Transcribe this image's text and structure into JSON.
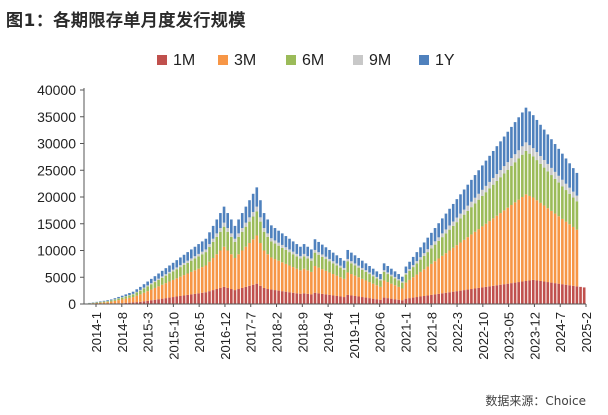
{
  "figure": {
    "title": "图1：各期限存单月度发行规模",
    "source": "数据来源：Choice"
  },
  "chart_data": {
    "type": "bar",
    "stacked": true,
    "ylim": [
      0,
      40000
    ],
    "yticks": [
      0,
      5000,
      10000,
      15000,
      20000,
      25000,
      30000,
      35000,
      40000
    ],
    "ytick_labels": [
      "0",
      "5000",
      "10000",
      "15000",
      "20000",
      "25000",
      "30000",
      "35000",
      "40000"
    ],
    "xtick_labels": [
      "2014-1",
      "2014-8",
      "2015-3",
      "2015-10",
      "2016-5",
      "2016-12",
      "2017-7",
      "2018-2",
      "2018-9",
      "2019-4",
      "2019-11",
      "2020-6",
      "2021-1",
      "2021-8",
      "2022-3",
      "2022-10",
      "2023-05",
      "2023-12",
      "2024-7",
      "2025-2"
    ],
    "legend_position": "top",
    "grid": false,
    "categories_start": "2014-1",
    "categories_end": "2025-2",
    "series_colors": [
      "#c0504d",
      "#f79646",
      "#9bbb59",
      "#c8c8c8",
      "#4f81bd"
    ],
    "series": [
      {
        "name": "1M",
        "values": [
          0,
          0,
          0,
          0,
          0,
          0,
          0,
          50,
          80,
          120,
          150,
          200,
          250,
          300,
          350,
          400,
          500,
          600,
          700,
          800,
          900,
          1000,
          1100,
          1200,
          1300,
          1400,
          1500,
          1600,
          1700,
          1800,
          1900,
          2000,
          2100,
          2200,
          2400,
          2600,
          2800,
          3000,
          3200,
          3000,
          2800,
          2600,
          2800,
          3000,
          3200,
          3400,
          3600,
          3800,
          3400,
          3000,
          2800,
          2700,
          2600,
          2500,
          2400,
          2300,
          2200,
          2100,
          2000,
          1900,
          2000,
          1900,
          1800,
          2100,
          2000,
          1900,
          1800,
          1700,
          1600,
          1500,
          1400,
          1300,
          1700,
          1600,
          1500,
          1400,
          1300,
          1200,
          1100,
          1000,
          900,
          800,
          1200,
          1100,
          1000,
          900,
          800,
          700,
          1000,
          1100,
          1200,
          1300,
          1400,
          1500,
          1600,
          1700,
          1800,
          1900,
          2000,
          2100,
          2200,
          2300,
          2400,
          2500,
          2600,
          2700,
          2800,
          2900,
          3000,
          3100,
          3200,
          3300,
          3400,
          3500,
          3600,
          3700,
          3800,
          3900,
          4000,
          4100,
          4200,
          4300,
          4400,
          4500,
          4400,
          4300,
          4200,
          4100,
          4000,
          3900,
          3800,
          3700,
          3600,
          3500,
          3400,
          3300,
          3200,
          3100
        ]
      },
      {
        "name": "3M",
        "values": [
          0,
          100,
          150,
          200,
          250,
          300,
          350,
          400,
          500,
          600,
          700,
          800,
          900,
          1000,
          1200,
          1400,
          1600,
          1800,
          2000,
          2200,
          2400,
          2600,
          2800,
          3000,
          3200,
          3400,
          3600,
          3800,
          4000,
          4200,
          4400,
          4600,
          4800,
          5000,
          5500,
          6000,
          6500,
          7000,
          7500,
          7000,
          6500,
          6000,
          6500,
          7000,
          7500,
          8000,
          8500,
          9000,
          8000,
          7000,
          6500,
          6000,
          5800,
          5600,
          5400,
          5200,
          5000,
          4800,
          4600,
          4400,
          4600,
          4400,
          4200,
          5000,
          4800,
          4600,
          4400,
          4200,
          4000,
          3800,
          3600,
          3400,
          4200,
          4000,
          3800,
          3600,
          3400,
          3200,
          3000,
          2800,
          2600,
          2400,
          3200,
          3000,
          2800,
          2600,
          2400,
          2200,
          3000,
          3400,
          3800,
          4200,
          4600,
          5000,
          5400,
          5800,
          6200,
          6600,
          7000,
          7400,
          7800,
          8200,
          8600,
          9000,
          9400,
          9800,
          10200,
          10600,
          11000,
          11400,
          11800,
          12200,
          12600,
          13000,
          13400,
          13800,
          14200,
          14600,
          15000,
          15400,
          15800,
          16200,
          15800,
          15400,
          15000,
          14600,
          14200,
          13800,
          13400,
          13000,
          12600,
          12200,
          11800,
          11400,
          11000,
          10600
        ]
      },
      {
        "name": "6M",
        "values": [
          0,
          50,
          80,
          100,
          120,
          150,
          180,
          200,
          250,
          300,
          350,
          400,
          450,
          500,
          600,
          700,
          800,
          900,
          1000,
          1100,
          1200,
          1300,
          1400,
          1500,
          1600,
          1700,
          1800,
          1900,
          2000,
          2100,
          2200,
          2300,
          2400,
          2500,
          2750,
          3000,
          3250,
          3500,
          3750,
          3500,
          3250,
          3000,
          3250,
          3500,
          3750,
          4000,
          4250,
          4500,
          4000,
          3500,
          3250,
          3000,
          2900,
          2800,
          2700,
          2600,
          2500,
          2400,
          2300,
          2200,
          2300,
          2200,
          2100,
          2500,
          2400,
          2300,
          2200,
          2100,
          2000,
          1900,
          1800,
          1700,
          2100,
          2000,
          1900,
          1800,
          1700,
          1600,
          1500,
          1400,
          1300,
          1200,
          1600,
          1500,
          1400,
          1300,
          1200,
          1100,
          1500,
          1700,
          1900,
          2100,
          2300,
          2500,
          2700,
          2900,
          3100,
          3300,
          3500,
          3700,
          3900,
          4100,
          4300,
          4500,
          4700,
          4900,
          5100,
          5300,
          5500,
          5700,
          5900,
          6100,
          6300,
          6500,
          6700,
          6900,
          7100,
          7300,
          7500,
          7700,
          7900,
          8100,
          7900,
          7700,
          7500,
          7300,
          7100,
          6900,
          6700,
          6500,
          6300,
          6100,
          5900,
          5700,
          5500,
          5300
        ]
      },
      {
        "name": "9M",
        "values": [
          0,
          10,
          15,
          20,
          25,
          30,
          35,
          40,
          50,
          60,
          70,
          80,
          90,
          100,
          120,
          140,
          160,
          180,
          200,
          220,
          240,
          260,
          280,
          300,
          320,
          340,
          360,
          380,
          400,
          420,
          440,
          460,
          480,
          500,
          550,
          600,
          650,
          700,
          750,
          700,
          650,
          600,
          650,
          700,
          750,
          800,
          850,
          900,
          800,
          700,
          650,
          600,
          580,
          560,
          540,
          520,
          500,
          480,
          460,
          440,
          460,
          440,
          420,
          500,
          480,
          460,
          440,
          420,
          400,
          380,
          360,
          340,
          420,
          400,
          380,
          360,
          340,
          320,
          300,
          280,
          260,
          240,
          320,
          300,
          280,
          260,
          240,
          220,
          300,
          340,
          380,
          420,
          460,
          500,
          540,
          580,
          620,
          660,
          700,
          740,
          780,
          820,
          860,
          900,
          940,
          980,
          1020,
          1060,
          1100,
          1140,
          1180,
          1220,
          1260,
          1300,
          1340,
          1380,
          1420,
          1460,
          1500,
          1540,
          1580,
          1620,
          1580,
          1540,
          1500,
          1460,
          1420,
          1380,
          1340,
          1300,
          1260,
          1220,
          1180,
          1140,
          1100,
          1060
        ]
      },
      {
        "name": "1Y",
        "values": [
          0,
          40,
          60,
          80,
          100,
          120,
          140,
          160,
          200,
          240,
          280,
          320,
          360,
          400,
          480,
          560,
          640,
          720,
          800,
          880,
          960,
          1040,
          1120,
          1200,
          1280,
          1360,
          1440,
          1520,
          1600,
          1680,
          1760,
          1840,
          1920,
          2000,
          2200,
          2400,
          2600,
          2800,
          3000,
          2800,
          2600,
          2400,
          2600,
          2800,
          3000,
          3200,
          3400,
          3600,
          3200,
          2800,
          2600,
          2400,
          2320,
          2240,
          2160,
          2080,
          2000,
          1920,
          1840,
          1760,
          1840,
          1760,
          1680,
          2000,
          1920,
          1840,
          1760,
          1680,
          1600,
          1520,
          1440,
          1360,
          1680,
          1600,
          1520,
          1440,
          1360,
          1280,
          1200,
          1120,
          1040,
          960,
          1280,
          1200,
          1120,
          1040,
          960,
          880,
          1200,
          1360,
          1520,
          1680,
          1840,
          2000,
          2160,
          2320,
          2480,
          2640,
          2800,
          2960,
          3120,
          3280,
          3440,
          3600,
          3760,
          3920,
          4080,
          4240,
          4400,
          4560,
          4720,
          4880,
          5040,
          5200,
          5360,
          5520,
          5680,
          5840,
          6000,
          6160,
          6320,
          6480,
          6320,
          6160,
          6000,
          5840,
          5680,
          5520,
          5360,
          5200,
          5040,
          4880,
          4720,
          4560,
          4400,
          4240
        ]
      }
    ]
  }
}
